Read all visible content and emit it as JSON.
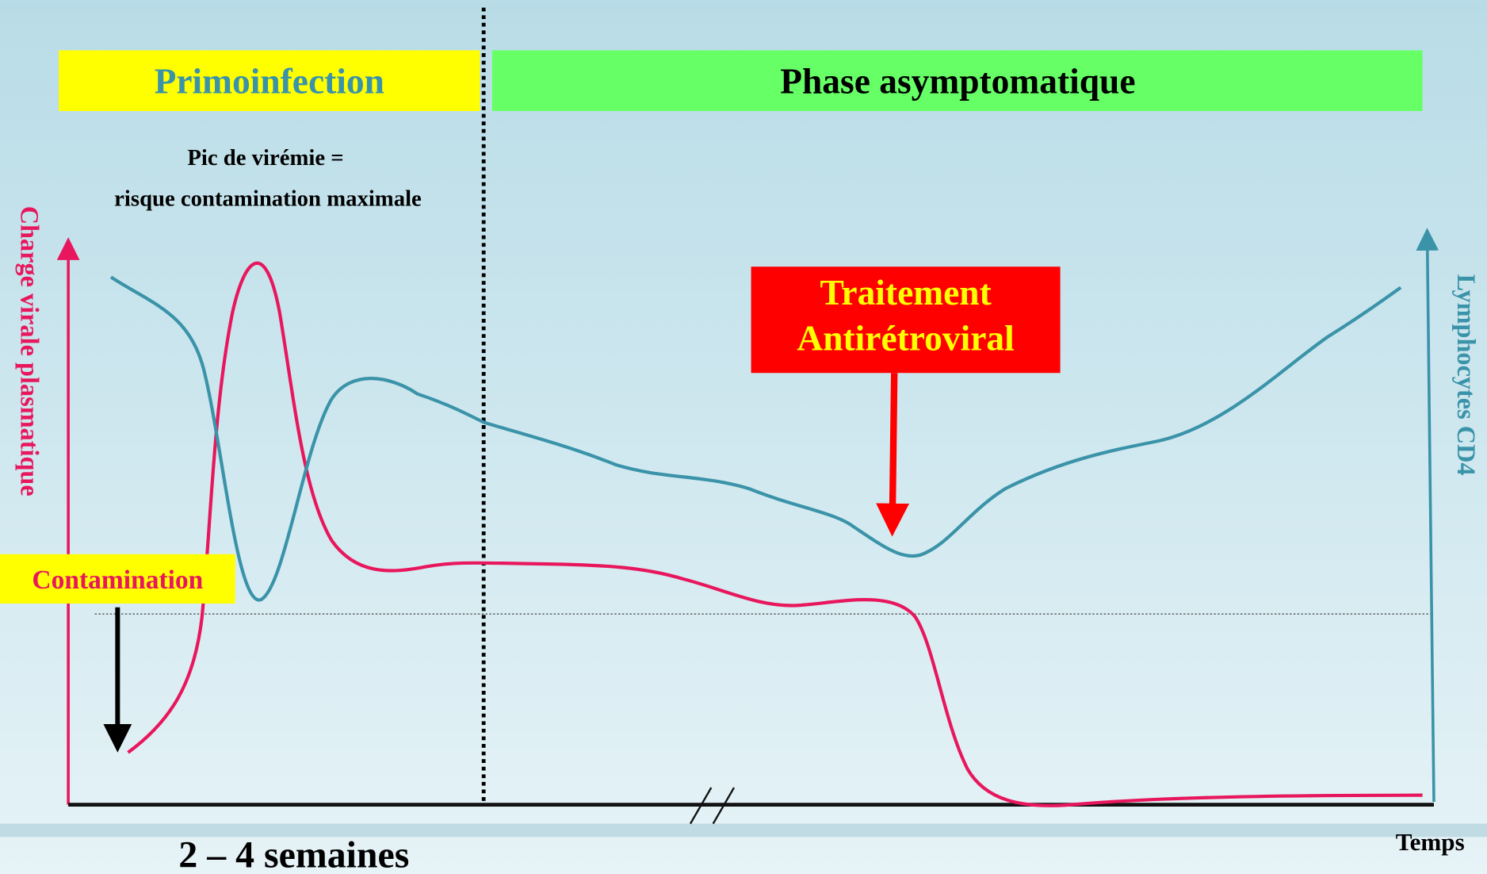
{
  "phases": {
    "primary": "Primoinfection",
    "asymptomatic": "Phase asymptomatique"
  },
  "annotations": {
    "peak_line1": "Pic de virémie =",
    "peak_line2": "risque contamination maximale",
    "treatment": "Traitement Antirétroviral",
    "contamination": "Contamination"
  },
  "axes": {
    "left": "Charge virale plasmatique",
    "right": "Lymphocytes CD4",
    "bottom": "Temps",
    "duration": "2 – 4 semaines"
  }
}
